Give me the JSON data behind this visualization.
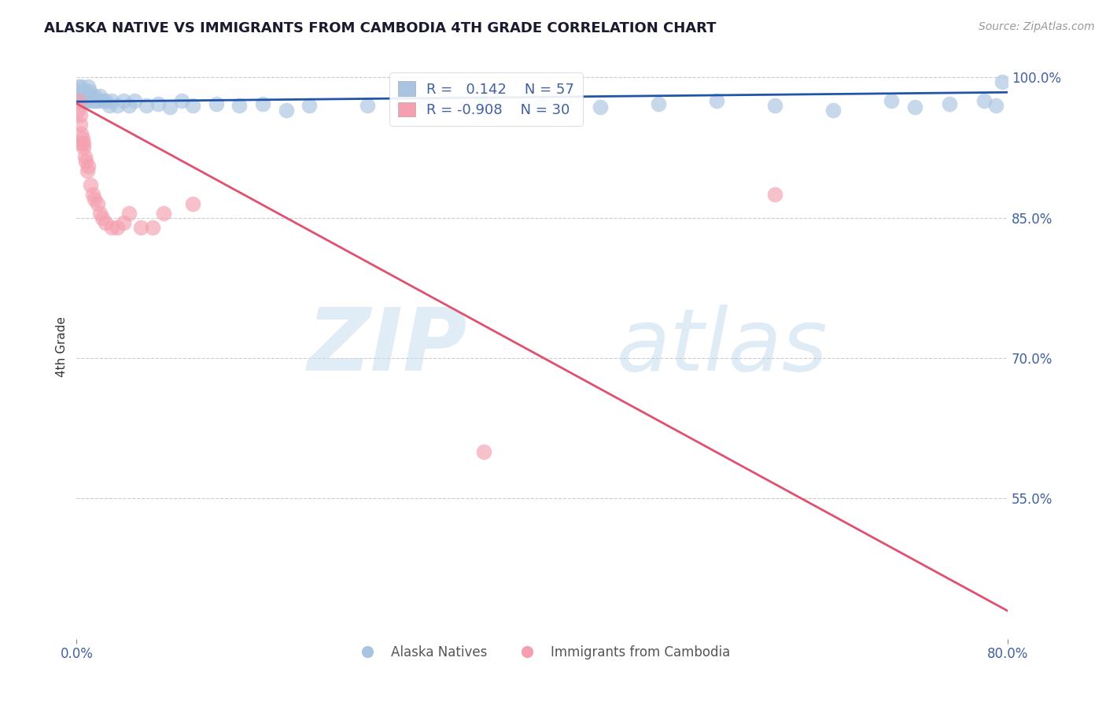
{
  "title": "ALASKA NATIVE VS IMMIGRANTS FROM CAMBODIA 4TH GRADE CORRELATION CHART",
  "source_text": "Source: ZipAtlas.com",
  "ylabel": "4th Grade",
  "xlabel": "",
  "xlim": [
    0.0,
    0.8
  ],
  "ylim": [
    0.4,
    1.025
  ],
  "xtick_labels": [
    "0.0%",
    "80.0%"
  ],
  "ytick_labels": [
    "100.0%",
    "85.0%",
    "70.0%",
    "55.0%"
  ],
  "ytick_positions": [
    1.0,
    0.85,
    0.7,
    0.55
  ],
  "legend_r_blue": "0.142",
  "legend_n_blue": "57",
  "legend_r_pink": "-0.908",
  "legend_n_pink": "30",
  "blue_color": "#a8c4e0",
  "pink_color": "#f4a0b0",
  "trendline_blue_color": "#2255aa",
  "trendline_pink_color": "#e05070",
  "grid_color": "#cccccc",
  "title_color": "#1a1a2e",
  "axis_label_color": "#4060a0",
  "blue_scatter_x": [
    0.001,
    0.002,
    0.002,
    0.003,
    0.003,
    0.004,
    0.004,
    0.005,
    0.005,
    0.006,
    0.006,
    0.007,
    0.007,
    0.008,
    0.009,
    0.01,
    0.01,
    0.011,
    0.012,
    0.013,
    0.015,
    0.016,
    0.018,
    0.02,
    0.022,
    0.025,
    0.028,
    0.03,
    0.035,
    0.04,
    0.045,
    0.05,
    0.06,
    0.07,
    0.08,
    0.09,
    0.1,
    0.12,
    0.14,
    0.16,
    0.18,
    0.2,
    0.25,
    0.3,
    0.35,
    0.4,
    0.45,
    0.5,
    0.55,
    0.6,
    0.65,
    0.7,
    0.72,
    0.75,
    0.78,
    0.79,
    0.795
  ],
  "blue_scatter_y": [
    0.985,
    0.99,
    0.98,
    0.985,
    0.975,
    0.99,
    0.98,
    0.985,
    0.975,
    0.98,
    0.975,
    0.985,
    0.975,
    0.98,
    0.975,
    0.99,
    0.98,
    0.985,
    0.98,
    0.975,
    0.98,
    0.975,
    0.975,
    0.98,
    0.975,
    0.975,
    0.97,
    0.975,
    0.97,
    0.975,
    0.97,
    0.975,
    0.97,
    0.972,
    0.968,
    0.975,
    0.97,
    0.972,
    0.97,
    0.972,
    0.965,
    0.97,
    0.97,
    0.972,
    0.975,
    0.97,
    0.968,
    0.972,
    0.975,
    0.97,
    0.965,
    0.975,
    0.968,
    0.972,
    0.975,
    0.97,
    0.995
  ],
  "pink_scatter_x": [
    0.001,
    0.002,
    0.003,
    0.003,
    0.004,
    0.004,
    0.005,
    0.006,
    0.006,
    0.007,
    0.008,
    0.009,
    0.01,
    0.012,
    0.014,
    0.015,
    0.018,
    0.02,
    0.022,
    0.025,
    0.03,
    0.035,
    0.04,
    0.045,
    0.055,
    0.065,
    0.075,
    0.1,
    0.35,
    0.6
  ],
  "pink_scatter_y": [
    0.965,
    0.975,
    0.96,
    0.95,
    0.94,
    0.93,
    0.935,
    0.925,
    0.93,
    0.915,
    0.91,
    0.9,
    0.905,
    0.885,
    0.875,
    0.87,
    0.865,
    0.855,
    0.85,
    0.845,
    0.84,
    0.84,
    0.845,
    0.855,
    0.84,
    0.84,
    0.855,
    0.865,
    0.6,
    0.875
  ],
  "pink_trendline_x": [
    0.0,
    0.8
  ],
  "pink_trendline_y": [
    0.972,
    0.43
  ],
  "blue_trendline_x": [
    0.0,
    0.8
  ],
  "blue_trendline_y": [
    0.974,
    0.984
  ]
}
